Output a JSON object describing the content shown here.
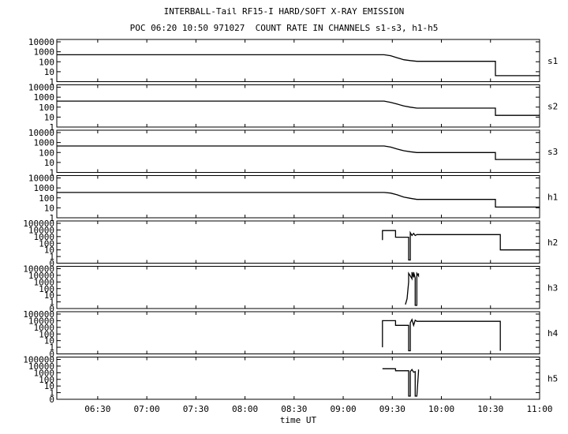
{
  "header": {
    "title": "INTERBALL-Tail RF15-I HARD/SOFT X-RAY EMISSION",
    "subtitle": "POC 06:20 10:50 971027  COUNT RATE IN CHANNELS s1-s3, h1-h5"
  },
  "chart_data": {
    "type": "line",
    "xlabel": "time UT",
    "x_ticks": [
      "06:30",
      "07:00",
      "07:30",
      "08:00",
      "08:30",
      "09:00",
      "09:30",
      "10:00",
      "10:30",
      "11:00"
    ],
    "x_range": [
      "06:05",
      "11:00"
    ],
    "y_scale": "log",
    "grid": false,
    "panels": [
      {
        "name": "s1",
        "y_ticks": [
          "10000",
          "1000",
          "100",
          "10",
          "1"
        ],
        "series": {
          "x": [
            "06:05",
            "09:25",
            "09:29",
            "09:33",
            "09:37",
            "09:41",
            "09:45",
            "10:33",
            "10:33",
            "11:00"
          ],
          "y": [
            500,
            500,
            400,
            250,
            160,
            130,
            110,
            110,
            4,
            4
          ]
        }
      },
      {
        "name": "s2",
        "y_ticks": [
          "10000",
          "1000",
          "100",
          "10",
          "1"
        ],
        "series": {
          "x": [
            "06:05",
            "09:25",
            "09:29",
            "09:33",
            "09:37",
            "09:41",
            "09:45",
            "10:33",
            "10:33",
            "11:00"
          ],
          "y": [
            400,
            400,
            300,
            200,
            130,
            100,
            80,
            80,
            15,
            15
          ]
        }
      },
      {
        "name": "s3",
        "y_ticks": [
          "10000",
          "1000",
          "100",
          "10",
          "1"
        ],
        "series": {
          "x": [
            "06:05",
            "09:25",
            "09:29",
            "09:33",
            "09:37",
            "09:41",
            "09:45",
            "10:33",
            "10:33",
            "11:00"
          ],
          "y": [
            450,
            450,
            350,
            220,
            150,
            120,
            100,
            100,
            20,
            20
          ]
        }
      },
      {
        "name": "h1",
        "y_ticks": [
          "10000",
          "1000",
          "100",
          "10",
          "1"
        ],
        "series": {
          "x": [
            "06:05",
            "09:25",
            "09:29",
            "09:33",
            "09:37",
            "09:41",
            "09:45",
            "10:33",
            "10:33",
            "11:00"
          ],
          "y": [
            350,
            350,
            300,
            200,
            120,
            90,
            70,
            70,
            12,
            12
          ]
        }
      },
      {
        "name": "h2",
        "y_ticks": [
          "100000",
          "10000",
          "1000",
          "100",
          "10",
          "1",
          "0"
        ],
        "series": {
          "x": [
            "09:24",
            "09:24",
            "09:32",
            "09:32",
            "09:40",
            "09:40",
            "09:41",
            "09:41",
            "09:42",
            "09:43",
            "09:44",
            "09:45",
            "10:36",
            "10:36",
            "11:00"
          ],
          "y": [
            300,
            8000,
            8000,
            800,
            800,
            0.3,
            0.3,
            4000,
            1500,
            3000,
            1500,
            2000,
            2000,
            10,
            10
          ]
        }
      },
      {
        "name": "h3",
        "y_ticks": [
          "100000",
          "10000",
          "1000",
          "100",
          "10",
          "1",
          "0"
        ],
        "series": {
          "x": [
            "09:38",
            "09:39",
            "09:40",
            "09:40",
            "09:41",
            "09:42",
            "09:42",
            "09:43",
            "09:43",
            "09:44",
            "09:44",
            "09:45",
            "09:45",
            "09:46",
            "09:46"
          ],
          "y": [
            0.4,
            3,
            1000,
            20000,
            8000,
            3000,
            30000,
            5000,
            30000,
            4000,
            0.3,
            0.3,
            20000,
            8000,
            20000
          ]
        }
      },
      {
        "name": "h4",
        "y_ticks": [
          "100000",
          "10000",
          "1000",
          "100",
          "10",
          "1",
          "0"
        ],
        "series": {
          "x": [
            "09:24",
            "09:24",
            "09:32",
            "09:32",
            "09:40",
            "09:40",
            "09:41",
            "09:41",
            "09:42",
            "09:43",
            "09:44",
            "09:45",
            "10:36",
            "10:36"
          ],
          "y": [
            1,
            10000,
            10000,
            2000,
            2000,
            0.3,
            0.3,
            5000,
            15000,
            2000,
            12000,
            8000,
            8000,
            0.3
          ]
        }
      },
      {
        "name": "h5",
        "y_ticks": [
          "100000",
          "10000",
          "1000",
          "100",
          "10",
          "1",
          "0"
        ],
        "series": {
          "x": [
            "09:24",
            "09:24",
            "09:32",
            "09:32",
            "09:40",
            "09:40",
            "09:41",
            "09:41",
            "09:42",
            "09:43",
            "09:44",
            "09:44",
            "09:45",
            "09:46",
            "09:46"
          ],
          "y": [
            4000,
            4000,
            4000,
            2000,
            2000,
            0.3,
            0.3,
            1500,
            3000,
            1200,
            1500,
            0.3,
            0.3,
            1500,
            3000
          ]
        }
      }
    ]
  }
}
